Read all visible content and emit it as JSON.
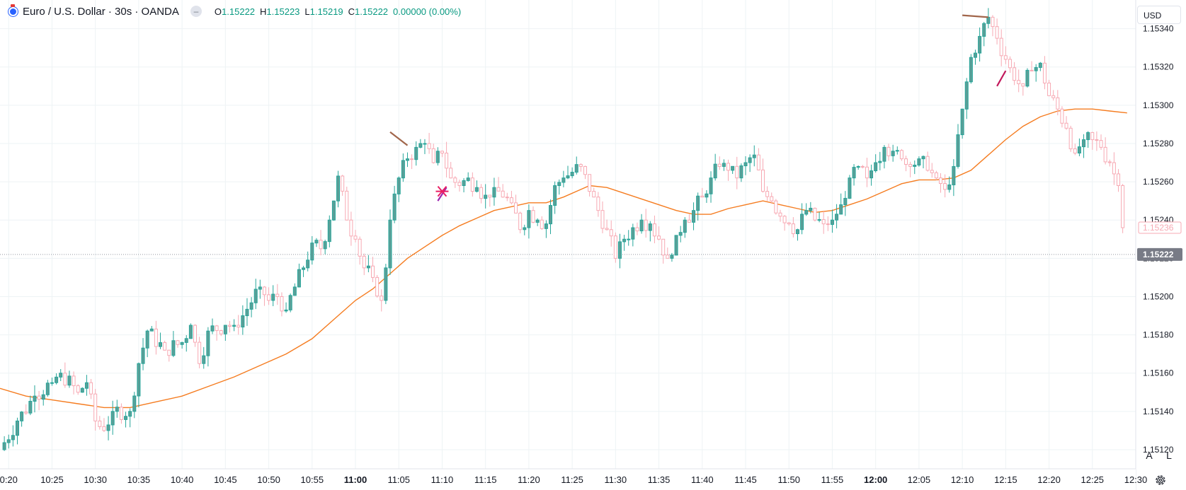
{
  "header": {
    "symbol_title": "Euro / U.S. Dollar · 30s · OANDA",
    "ohlc": {
      "o_label": "O",
      "o_value": "1.15222",
      "h_label": "H",
      "h_value": "1.15223",
      "l_label": "L",
      "l_value": "1.15219",
      "c_label": "C",
      "c_value": "1.15222",
      "change": "0.00000 (0.00%)"
    }
  },
  "price_scale": {
    "currency": "USD",
    "auto_label": "A",
    "log_label": "L"
  },
  "icons": {
    "logo": "oanda-logo-icon",
    "hide": "eye-hide-icon",
    "settings": "gear-icon"
  },
  "colors": {
    "up": "#26a69a",
    "up_fill": "#5b9f98",
    "down": "#f7a9b3",
    "ma_line": "#f57c20",
    "last_price_label_bg": "#787b86",
    "ghost_label": "#f7a9b3",
    "grid": "#eef3f5"
  },
  "chart_data": {
    "type": "candlestick",
    "ylim": [
      1.1511,
      1.15355
    ],
    "time_range": [
      "10:19",
      "12:30"
    ],
    "x_ticks": [
      {
        "time": "10:20",
        "label": "0:20",
        "bold": false
      },
      {
        "time": "10:25",
        "label": "10:25",
        "bold": false
      },
      {
        "time": "10:30",
        "label": "10:30",
        "bold": false
      },
      {
        "time": "10:35",
        "label": "10:35",
        "bold": false
      },
      {
        "time": "10:40",
        "label": "10:40",
        "bold": false
      },
      {
        "time": "10:45",
        "label": "10:45",
        "bold": false
      },
      {
        "time": "10:50",
        "label": "10:50",
        "bold": false
      },
      {
        "time": "10:55",
        "label": "10:55",
        "bold": false
      },
      {
        "time": "11:00",
        "label": "11:00",
        "bold": true
      },
      {
        "time": "11:05",
        "label": "11:05",
        "bold": false
      },
      {
        "time": "11:10",
        "label": "11:10",
        "bold": false
      },
      {
        "time": "11:15",
        "label": "11:15",
        "bold": false
      },
      {
        "time": "11:20",
        "label": "11:20",
        "bold": false
      },
      {
        "time": "11:25",
        "label": "11:25",
        "bold": false
      },
      {
        "time": "11:30",
        "label": "11:30",
        "bold": false
      },
      {
        "time": "11:35",
        "label": "11:35",
        "bold": false
      },
      {
        "time": "11:40",
        "label": "11:40",
        "bold": false
      },
      {
        "time": "11:45",
        "label": "11:45",
        "bold": false
      },
      {
        "time": "11:50",
        "label": "11:50",
        "bold": false
      },
      {
        "time": "11:55",
        "label": "11:55",
        "bold": false
      },
      {
        "time": "12:00",
        "label": "12:00",
        "bold": true
      },
      {
        "time": "12:05",
        "label": "12:05",
        "bold": false
      },
      {
        "time": "12:10",
        "label": "12:10",
        "bold": false
      },
      {
        "time": "12:15",
        "label": "12:15",
        "bold": false
      },
      {
        "time": "12:20",
        "label": "12:20",
        "bold": false
      },
      {
        "time": "12:25",
        "label": "12:25",
        "bold": false
      },
      {
        "time": "12:30",
        "label": "12:30",
        "bold": false
      }
    ],
    "y_ticks": [
      {
        "value": 1.1512,
        "label": "1.15120"
      },
      {
        "value": 1.1514,
        "label": "1.15140"
      },
      {
        "value": 1.1516,
        "label": "1.15160"
      },
      {
        "value": 1.1518,
        "label": "1.15180"
      },
      {
        "value": 1.152,
        "label": "1.15200"
      },
      {
        "value": 1.1522,
        "label": "1.15220"
      },
      {
        "value": 1.1524,
        "label": "1.15240"
      },
      {
        "value": 1.1526,
        "label": "1.15260"
      },
      {
        "value": 1.1528,
        "label": "1.15280"
      },
      {
        "value": 1.153,
        "label": "1.15300"
      },
      {
        "value": 1.1532,
        "label": "1.15320"
      },
      {
        "value": 1.1534,
        "label": "1.15340"
      }
    ],
    "close_path": [
      [
        "10:19",
        1.1512
      ],
      [
        "10:21",
        1.15135
      ],
      [
        "10:23",
        1.15148
      ],
      [
        "10:25",
        1.15155
      ],
      [
        "10:26",
        1.1516
      ],
      [
        "10:28",
        1.1515
      ],
      [
        "10:29",
        1.15155
      ],
      [
        "10:30",
        1.15135
      ],
      [
        "10:31",
        1.1513
      ],
      [
        "10:32",
        1.1514
      ],
      [
        "10:34",
        1.1514
      ],
      [
        "10:35",
        1.15165
      ],
      [
        "10:36",
        1.15182
      ],
      [
        "10:38",
        1.15172
      ],
      [
        "10:40",
        1.15176
      ],
      [
        "10:41",
        1.15185
      ],
      [
        "10:42",
        1.15165
      ],
      [
        "10:43",
        1.15182
      ],
      [
        "10:45",
        1.15185
      ],
      [
        "10:46",
        1.15185
      ],
      [
        "10:47",
        1.1519
      ],
      [
        "10:49",
        1.15205
      ],
      [
        "10:50",
        1.15198
      ],
      [
        "10:51",
        1.152
      ],
      [
        "10:52",
        1.15193
      ],
      [
        "10:53",
        1.15205
      ],
      [
        "10:54",
        1.15215
      ],
      [
        "10:55",
        1.15228
      ],
      [
        "10:56",
        1.15225
      ],
      [
        "10:57",
        1.1524
      ],
      [
        "10:58",
        1.15263
      ],
      [
        "10:59",
        1.1524
      ],
      [
        "11:00",
        1.1523
      ],
      [
        "11:01",
        1.15215
      ],
      [
        "11:02",
        1.1521
      ],
      [
        "11:03",
        1.15198
      ],
      [
        "11:03:30",
        1.15215
      ],
      [
        "11:04",
        1.1524
      ],
      [
        "11:05",
        1.15262
      ],
      [
        "11:06",
        1.15272
      ],
      [
        "11:07",
        1.15278
      ],
      [
        "11:08",
        1.1528
      ],
      [
        "11:09",
        1.1527
      ],
      [
        "11:10",
        1.15275
      ],
      [
        "11:11",
        1.15262
      ],
      [
        "11:12",
        1.15258
      ],
      [
        "11:13",
        1.15262
      ],
      [
        "11:14",
        1.15257
      ],
      [
        "11:15",
        1.15253
      ],
      [
        "11:16",
        1.15257
      ],
      [
        "11:17",
        1.15252
      ],
      [
        "11:18",
        1.15249
      ],
      [
        "11:19",
        1.15235
      ],
      [
        "11:20",
        1.15245
      ],
      [
        "11:21",
        1.1524
      ],
      [
        "11:22",
        1.15238
      ],
      [
        "11:23",
        1.15258
      ],
      [
        "11:24",
        1.15262
      ],
      [
        "11:25",
        1.15265
      ],
      [
        "11:26",
        1.15268
      ],
      [
        "11:27",
        1.15255
      ],
      [
        "11:28",
        1.15245
      ],
      [
        "11:29",
        1.15235
      ],
      [
        "11:30",
        1.1522
      ],
      [
        "11:31",
        1.1523
      ],
      [
        "11:32",
        1.15236
      ],
      [
        "11:33",
        1.1524
      ],
      [
        "11:34",
        1.15238
      ],
      [
        "11:35",
        1.1523
      ],
      [
        "11:36",
        1.1522
      ],
      [
        "11:37",
        1.15232
      ],
      [
        "11:38",
        1.1524
      ],
      [
        "11:39",
        1.15245
      ],
      [
        "11:40",
        1.15252
      ],
      [
        "11:41",
        1.15262
      ],
      [
        "11:42",
        1.15268
      ],
      [
        "11:43",
        1.15266
      ],
      [
        "11:44",
        1.15262
      ],
      [
        "11:45",
        1.1527
      ],
      [
        "11:46",
        1.15274
      ],
      [
        "11:47",
        1.15255
      ],
      [
        "11:48",
        1.1525
      ],
      [
        "11:49",
        1.15242
      ],
      [
        "11:50",
        1.15238
      ],
      [
        "11:51",
        1.15235
      ],
      [
        "11:52",
        1.15245
      ],
      [
        "11:53",
        1.1524
      ],
      [
        "11:54",
        1.15238
      ],
      [
        "11:55",
        1.1524
      ],
      [
        "11:56",
        1.15248
      ],
      [
        "11:57",
        1.15262
      ],
      [
        "11:58",
        1.15268
      ],
      [
        "11:59",
        1.15262
      ],
      [
        "12:00",
        1.1527
      ],
      [
        "12:01",
        1.15278
      ],
      [
        "12:02",
        1.15276
      ],
      [
        "12:03",
        1.15272
      ],
      [
        "12:04",
        1.15268
      ],
      [
        "12:05",
        1.15272
      ],
      [
        "12:06",
        1.15266
      ],
      [
        "12:07",
        1.15262
      ],
      [
        "12:08",
        1.15256
      ],
      [
        "12:09",
        1.15268
      ],
      [
        "12:10",
        1.15298
      ],
      [
        "12:11",
        1.15325
      ],
      [
        "12:12",
        1.15336
      ],
      [
        "12:13",
        1.15346
      ],
      [
        "12:14",
        1.15335
      ],
      [
        "12:15",
        1.15324
      ],
      [
        "12:16",
        1.15313
      ],
      [
        "12:17",
        1.1531
      ],
      [
        "12:18",
        1.15318
      ],
      [
        "12:19",
        1.15322
      ],
      [
        "12:20",
        1.15305
      ],
      [
        "12:21",
        1.15298
      ],
      [
        "12:22",
        1.15288
      ],
      [
        "12:23",
        1.15275
      ],
      [
        "12:24",
        1.15282
      ],
      [
        "12:25",
        1.15282
      ],
      [
        "12:26",
        1.15278
      ],
      [
        "12:27",
        1.1527
      ],
      [
        "12:28",
        1.15258
      ],
      [
        "12:28:30",
        1.15236
      ]
    ],
    "series": [
      {
        "type": "line",
        "points": [
          [
            "10:19",
            1.15152
          ],
          [
            "10:22",
            1.15148
          ],
          [
            "10:25",
            1.15146
          ],
          [
            "10:28",
            1.15144
          ],
          [
            "10:31",
            1.15142
          ],
          [
            "10:34",
            1.15142
          ],
          [
            "10:37",
            1.15145
          ],
          [
            "10:40",
            1.15148
          ],
          [
            "10:43",
            1.15153
          ],
          [
            "10:46",
            1.15158
          ],
          [
            "10:49",
            1.15164
          ],
          [
            "10:52",
            1.1517
          ],
          [
            "10:55",
            1.15178
          ],
          [
            "10:58",
            1.1519
          ],
          [
            "11:00",
            1.15198
          ],
          [
            "11:02",
            1.15204
          ],
          [
            "11:04",
            1.15212
          ],
          [
            "11:06",
            1.1522
          ],
          [
            "11:08",
            1.15226
          ],
          [
            "11:10",
            1.15232
          ],
          [
            "11:12",
            1.15237
          ],
          [
            "11:14",
            1.15241
          ],
          [
            "11:16",
            1.15245
          ],
          [
            "11:18",
            1.15247
          ],
          [
            "11:20",
            1.15249
          ],
          [
            "11:22",
            1.15249
          ],
          [
            "11:24",
            1.15252
          ],
          [
            "11:26",
            1.15256
          ],
          [
            "11:27",
            1.15258
          ],
          [
            "11:29",
            1.15257
          ],
          [
            "11:31",
            1.15254
          ],
          [
            "11:33",
            1.15251
          ],
          [
            "11:35",
            1.15248
          ],
          [
            "11:37",
            1.15245
          ],
          [
            "11:39",
            1.15243
          ],
          [
            "11:41",
            1.15243
          ],
          [
            "11:43",
            1.15246
          ],
          [
            "11:45",
            1.15248
          ],
          [
            "11:47",
            1.1525
          ],
          [
            "11:49",
            1.15248
          ],
          [
            "11:51",
            1.15246
          ],
          [
            "11:53",
            1.15244
          ],
          [
            "11:55",
            1.15245
          ],
          [
            "11:57",
            1.15248
          ],
          [
            "11:59",
            1.15251
          ],
          [
            "12:01",
            1.15255
          ],
          [
            "12:03",
            1.15259
          ],
          [
            "12:05",
            1.15261
          ],
          [
            "12:07",
            1.15261
          ],
          [
            "12:09",
            1.15262
          ],
          [
            "12:11",
            1.15266
          ],
          [
            "12:13",
            1.15274
          ],
          [
            "12:15",
            1.15282
          ],
          [
            "12:17",
            1.15289
          ],
          [
            "12:19",
            1.15294
          ],
          [
            "12:21",
            1.15297
          ],
          [
            "12:23",
            1.15298
          ],
          [
            "12:25",
            1.15298
          ],
          [
            "12:27",
            1.15297
          ],
          [
            "12:29",
            1.15296
          ]
        ]
      }
    ],
    "current_price": {
      "value": 1.15222,
      "label": "1.15222"
    },
    "ghost_price": {
      "value": 1.15236,
      "label": "1.15236"
    },
    "drawings": [
      {
        "type": "trend_line",
        "color": "#a1664b",
        "from": [
          "11:04",
          1.15286
        ],
        "to": [
          "11:06",
          1.15279
        ]
      },
      {
        "type": "trend_line",
        "color": "#a1664b",
        "from": [
          "12:10",
          1.15347
        ],
        "to": [
          "12:13",
          1.15346
        ]
      },
      {
        "type": "trend_line",
        "color": "#c2185b",
        "from": [
          "12:14",
          1.1531
        ],
        "to": [
          "12:15",
          1.15318
        ]
      },
      {
        "type": "trend_line",
        "color": "#9c27b0",
        "from": [
          "11:09:30",
          1.1525
        ],
        "to": [
          "11:10:30",
          1.15257
        ]
      },
      {
        "type": "cross_marker",
        "color": "#e91e63",
        "at": [
          "11:10",
          1.15255
        ]
      }
    ]
  }
}
